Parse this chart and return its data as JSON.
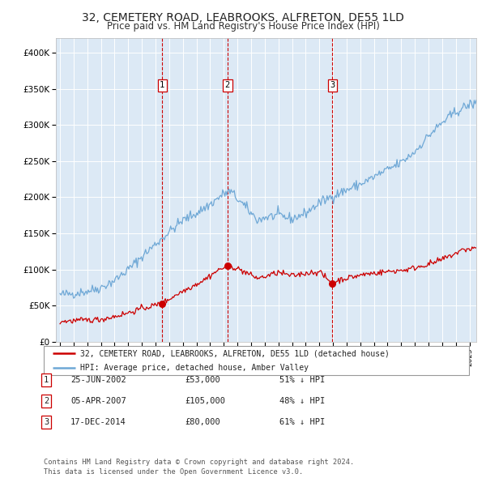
{
  "title": "32, CEMETERY ROAD, LEABROOKS, ALFRETON, DE55 1LD",
  "subtitle": "Price paid vs. HM Land Registry's House Price Index (HPI)",
  "title_fontsize": 10,
  "subtitle_fontsize": 8.5,
  "background_color": "#ffffff",
  "plot_bg_color": "#dce9f5",
  "ylim": [
    0,
    420000
  ],
  "yticks": [
    0,
    50000,
    100000,
    150000,
    200000,
    250000,
    300000,
    350000,
    400000
  ],
  "ytick_labels": [
    "£0",
    "£50K",
    "£100K",
    "£150K",
    "£200K",
    "£250K",
    "£300K",
    "£350K",
    "£400K"
  ],
  "hpi_color": "#6fa8d6",
  "price_color": "#cc0000",
  "marker_color": "#cc0000",
  "dashed_line_color": "#cc0000",
  "grid_color": "#ffffff",
  "purchases": [
    {
      "date_num": 2002.49,
      "price": 53000,
      "label": "1"
    },
    {
      "date_num": 2007.27,
      "price": 105000,
      "label": "2"
    },
    {
      "date_num": 2014.96,
      "price": 80000,
      "label": "3"
    }
  ],
  "legend_items": [
    {
      "label": "32, CEMETERY ROAD, LEABROOKS, ALFRETON, DE55 1LD (detached house)",
      "color": "#cc0000"
    },
    {
      "label": "HPI: Average price, detached house, Amber Valley",
      "color": "#6fa8d6"
    }
  ],
  "table_rows": [
    {
      "num": "1",
      "date": "25-JUN-2002",
      "price": "£53,000",
      "hpi": "51% ↓ HPI"
    },
    {
      "num": "2",
      "date": "05-APR-2007",
      "price": "£105,000",
      "hpi": "48% ↓ HPI"
    },
    {
      "num": "3",
      "date": "17-DEC-2014",
      "price": "£80,000",
      "hpi": "61% ↓ HPI"
    }
  ],
  "footer": "Contains HM Land Registry data © Crown copyright and database right 2024.\nThis data is licensed under the Open Government Licence v3.0.",
  "xlim_start": 1994.7,
  "xlim_end": 2025.5
}
